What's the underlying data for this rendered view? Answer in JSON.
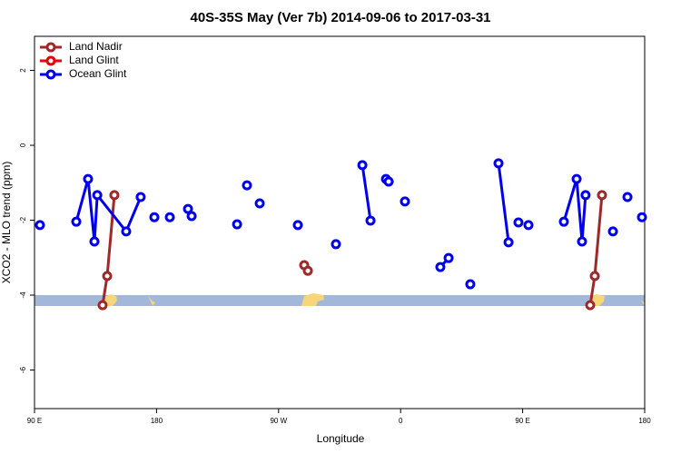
{
  "chart_data": {
    "type": "line",
    "title": "40S-35S May (Ver 7b)   2014-09-06 to 2017-03-31",
    "x_label": "Longitude",
    "y_label": "XCO2 - MLO trend (ppm)",
    "xlim": [
      90,
      540
    ],
    "ylim": [
      -7.03,
      2.91
    ],
    "xticks": [
      {
        "value": 90,
        "label": "90 E"
      },
      {
        "value": 180,
        "label": "180"
      },
      {
        "value": 270,
        "label": "90 W"
      },
      {
        "value": 360,
        "label": "0"
      },
      {
        "value": 450,
        "label": "90 E"
      },
      {
        "value": 540,
        "label": "180"
      }
    ],
    "yticks": [
      -6,
      -4,
      -2,
      0,
      2
    ],
    "legend": "top-left",
    "series": [
      {
        "name": "Land Nadir",
        "color": "#a02828",
        "x": [
          140.2,
          143.6,
          148.9,
          null,
          288.9,
          291.6,
          null,
          499.8,
          503.2,
          508.5
        ],
        "values": [
          -4.27,
          -3.49,
          -1.33,
          null,
          -3.2,
          -3.35,
          null,
          -4.27,
          -3.49,
          -1.33
        ]
      },
      {
        "name": "Land Glint",
        "color": "#ee0000",
        "x": [],
        "values": []
      },
      {
        "name": "Ocean Glint",
        "color": "#0000ee",
        "x": [
          94.0,
          null,
          120.8,
          129.5,
          134.2,
          136.3,
          157.6,
          168.3,
          null,
          178.4,
          null,
          189.8,
          null,
          203.2,
          205.9,
          null,
          239.4,
          null,
          246.7,
          null,
          256.1,
          null,
          284.2,
          null,
          312.3,
          null,
          331.8,
          337.8,
          null,
          349.2,
          351.2,
          null,
          363.2,
          null,
          389.3,
          395.4,
          null,
          411.4,
          null,
          432.2,
          439.6,
          null,
          446.9,
          null,
          454.3,
          null,
          480.4,
          489.8,
          493.8,
          496.4,
          null,
          516.6,
          null,
          527.3,
          null,
          538.0
        ],
        "values": [
          -2.13,
          null,
          -2.04,
          -0.9,
          -2.57,
          -1.33,
          -2.3,
          -1.38,
          null,
          -1.92,
          null,
          -1.92,
          null,
          -1.7,
          -1.89,
          null,
          -2.11,
          null,
          -1.07,
          null,
          -1.55,
          null,
          -2.13,
          null,
          -2.64,
          null,
          -0.53,
          -2.01,
          null,
          -0.9,
          -0.97,
          null,
          -1.5,
          null,
          -3.25,
          -3.01,
          null,
          -3.71,
          null,
          -0.48,
          -2.59,
          null,
          -2.06,
          null,
          -2.13,
          null,
          -2.04,
          -0.9,
          -2.57,
          -1.33,
          null,
          -2.3,
          null,
          -1.38,
          null,
          -1.92
        ]
      }
    ]
  }
}
